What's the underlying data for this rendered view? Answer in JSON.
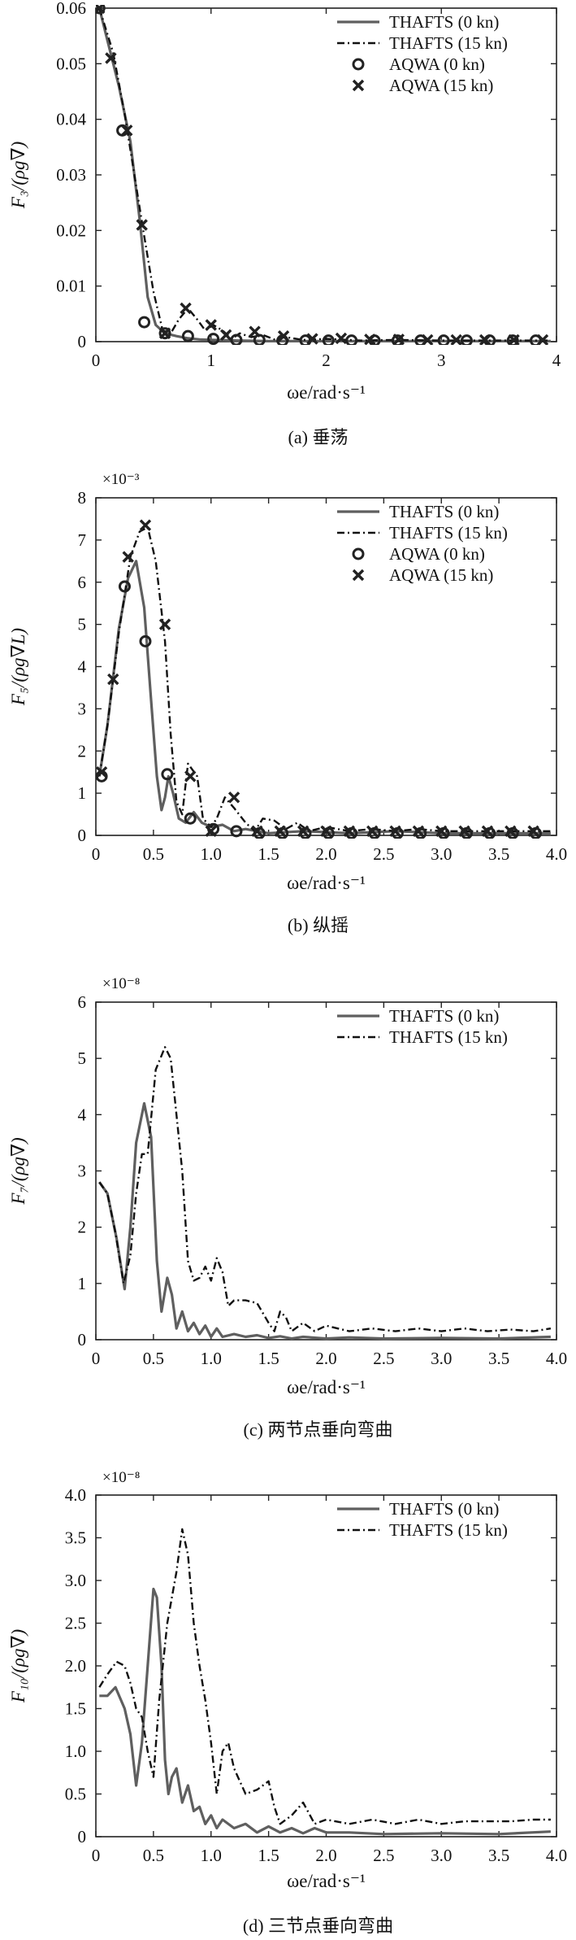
{
  "colors": {
    "thafts_0": "#5f5f5f",
    "thafts_15": "#111111",
    "marker": "#222222",
    "axis": "#222222"
  },
  "chart_data": [
    {
      "id": "a",
      "type": "line",
      "caption": "(a) 垂荡",
      "ylabel": "F₃/(ρg∇)",
      "xlabel": "ωe/rad·s⁻¹",
      "multiplier": "",
      "xlim": [
        0,
        4
      ],
      "ylim": [
        0,
        0.06
      ],
      "xticks": [
        0,
        1,
        2,
        3,
        4
      ],
      "xtick_labels": [
        "0",
        "1",
        "2",
        "3",
        "4"
      ],
      "yticks": [
        0,
        0.01,
        0.02,
        0.03,
        0.04,
        0.05,
        0.06
      ],
      "ytick_labels": [
        "0",
        "0.01",
        "0.02",
        "0.03",
        "0.04",
        "0.05",
        "0.06"
      ],
      "legend_position": "top-right",
      "series": [
        {
          "name": "THAFTS (0 kn)",
          "style": "solid",
          "x": [
            0.03,
            0.2,
            0.3,
            0.38,
            0.45,
            0.52,
            0.6,
            0.7,
            0.8,
            0.9,
            1.0,
            1.2,
            1.5,
            2.0,
            3.0,
            3.95
          ],
          "y": [
            0.06,
            0.046,
            0.036,
            0.022,
            0.008,
            0.003,
            0.0015,
            0.001,
            0.0006,
            0.0004,
            0.0003,
            0.0002,
            0.0001,
            0.0001,
            0.0001,
            0.0001
          ]
        },
        {
          "name": "THAFTS (15 kn)",
          "style": "dashdot",
          "x": [
            0.03,
            0.15,
            0.25,
            0.35,
            0.42,
            0.5,
            0.58,
            0.65,
            0.72,
            0.8,
            0.88,
            0.95,
            1.02,
            1.1,
            1.18,
            1.25,
            1.35,
            1.45,
            1.55,
            1.65,
            1.8,
            2.0,
            2.3,
            2.6,
            3.0,
            3.5,
            3.95
          ],
          "y": [
            0.06,
            0.052,
            0.041,
            0.028,
            0.019,
            0.009,
            0.002,
            0.0015,
            0.004,
            0.006,
            0.004,
            0.002,
            0.003,
            0.002,
            0.0005,
            0.0015,
            0.0008,
            0.0012,
            0.0004,
            0.0008,
            0.0003,
            0.0005,
            0.0002,
            0.0003,
            0.0002,
            0.0002,
            0.0002
          ]
        },
        {
          "name": "AQWA (0 kn)",
          "style": "circle",
          "x": [
            0.03,
            0.23,
            0.42,
            0.6,
            0.8,
            1.02,
            1.22,
            1.42,
            1.62,
            1.82,
            2.02,
            2.22,
            2.42,
            2.62,
            2.82,
            3.02,
            3.22,
            3.42,
            3.62,
            3.82
          ],
          "y": [
            0.06,
            0.038,
            0.0035,
            0.0015,
            0.001,
            0.0005,
            0.0003,
            0.0003,
            0.0002,
            0.0002,
            0.0002,
            0.0002,
            0.0002,
            0.0002,
            0.0002,
            0.0002,
            0.0002,
            0.0002,
            0.0002,
            0.0002
          ]
        },
        {
          "name": "AQWA (15 kn)",
          "style": "cross",
          "x": [
            0.03,
            0.13,
            0.27,
            0.4,
            0.6,
            0.78,
            1.0,
            1.13,
            1.38,
            1.63,
            1.88,
            2.13,
            2.38,
            2.63,
            2.88,
            3.13,
            3.38,
            3.63,
            3.88
          ],
          "y": [
            0.06,
            0.051,
            0.038,
            0.021,
            0.0015,
            0.006,
            0.003,
            0.0012,
            0.0018,
            0.001,
            0.0005,
            0.0006,
            0.0004,
            0.0004,
            0.0003,
            0.0003,
            0.0003,
            0.0003,
            0.0003
          ]
        }
      ]
    },
    {
      "id": "b",
      "type": "line",
      "caption": "(b) 纵摇",
      "ylabel": "F₅/(ρg∇L)",
      "xlabel": "ωe/rad·s⁻¹",
      "multiplier": "×10⁻³",
      "xlim": [
        0,
        4
      ],
      "ylim": [
        0,
        8
      ],
      "xticks": [
        0,
        0.5,
        1,
        1.5,
        2,
        2.5,
        3,
        3.5,
        4
      ],
      "xtick_labels": [
        "0",
        "0.5",
        "1.0",
        "1.5",
        "2.0",
        "2.5",
        "3.0",
        "3.5",
        "4.0"
      ],
      "yticks": [
        0,
        1,
        2,
        3,
        4,
        5,
        6,
        7,
        8
      ],
      "ytick_labels": [
        "0",
        "1",
        "2",
        "3",
        "4",
        "5",
        "6",
        "7",
        "8"
      ],
      "legend_position": "top-right",
      "series": [
        {
          "name": "THAFTS  (0 kn)",
          "style": "solid",
          "x": [
            0.03,
            0.1,
            0.2,
            0.28,
            0.35,
            0.42,
            0.48,
            0.53,
            0.57,
            0.6,
            0.63,
            0.67,
            0.72,
            0.78,
            0.85,
            0.92,
            1.0,
            1.1,
            1.2,
            1.3,
            1.5,
            1.8,
            2.2,
            2.6,
            3.0,
            3.5,
            3.95
          ],
          "y": [
            1.4,
            2.6,
            4.9,
            6.1,
            6.5,
            5.4,
            3.2,
            1.4,
            0.6,
            0.9,
            1.4,
            1.0,
            0.4,
            0.3,
            0.55,
            0.3,
            0.2,
            0.25,
            0.1,
            0.15,
            0.05,
            0.1,
            0.05,
            0.1,
            0.05,
            0.05,
            0.05
          ]
        },
        {
          "name": "THAFTS (15 kn)",
          "style": "dashdot",
          "x": [
            0.03,
            0.1,
            0.2,
            0.3,
            0.38,
            0.45,
            0.52,
            0.6,
            0.65,
            0.7,
            0.75,
            0.8,
            0.88,
            0.93,
            1.0,
            1.05,
            1.12,
            1.2,
            1.3,
            1.38,
            1.45,
            1.55,
            1.65,
            1.75,
            1.85,
            2.0,
            2.2,
            2.4,
            2.6,
            2.8,
            3.0,
            3.3,
            3.6,
            3.95
          ],
          "y": [
            1.4,
            2.6,
            4.8,
            6.6,
            7.2,
            7.3,
            6.5,
            4.6,
            2.4,
            0.8,
            0.5,
            1.7,
            1.4,
            0.4,
            0.2,
            0.4,
            0.9,
            0.65,
            0.3,
            0.1,
            0.4,
            0.35,
            0.15,
            0.3,
            0.1,
            0.2,
            0.1,
            0.15,
            0.1,
            0.15,
            0.1,
            0.1,
            0.1,
            0.1
          ]
        },
        {
          "name": "AQWA (0 kn)",
          "style": "circle",
          "x": [
            0.05,
            0.25,
            0.43,
            0.62,
            0.82,
            1.02,
            1.22,
            1.42,
            1.62,
            1.82,
            2.02,
            2.22,
            2.42,
            2.62,
            2.82,
            3.02,
            3.22,
            3.42,
            3.62,
            3.82
          ],
          "y": [
            1.4,
            5.9,
            4.6,
            1.45,
            0.4,
            0.15,
            0.1,
            0.05,
            0.05,
            0.05,
            0.05,
            0.05,
            0.05,
            0.05,
            0.05,
            0.05,
            0.05,
            0.05,
            0.05,
            0.05
          ]
        },
        {
          "name": "AQWA (15 kn)",
          "style": "cross",
          "x": [
            0.05,
            0.15,
            0.28,
            0.43,
            0.6,
            0.82,
            1.0,
            1.2,
            1.4,
            1.6,
            1.8,
            2.0,
            2.2,
            2.4,
            2.6,
            2.8,
            3.0,
            3.2,
            3.4,
            3.6,
            3.8
          ],
          "y": [
            1.5,
            3.7,
            6.6,
            7.35,
            5.0,
            1.4,
            0.1,
            0.9,
            0.1,
            0.1,
            0.1,
            0.1,
            0.1,
            0.1,
            0.1,
            0.1,
            0.1,
            0.1,
            0.1,
            0.1,
            0.1
          ]
        }
      ]
    },
    {
      "id": "c",
      "type": "line",
      "caption": "(c) 两节点垂向弯曲",
      "ylabel": "F₇/(ρg∇)",
      "xlabel": "ωe/rad·s⁻¹",
      "multiplier": "×10⁻⁸",
      "xlim": [
        0,
        4
      ],
      "ylim": [
        0,
        6
      ],
      "xticks": [
        0,
        0.5,
        1,
        1.5,
        2,
        2.5,
        3,
        3.5,
        4
      ],
      "xtick_labels": [
        "0",
        "0.5",
        "1.0",
        "1.5",
        "2.0",
        "2.5",
        "3.0",
        "3.5",
        "4.0"
      ],
      "yticks": [
        0,
        1,
        2,
        3,
        4,
        5,
        6
      ],
      "ytick_labels": [
        "0",
        "1",
        "2",
        "3",
        "4",
        "5",
        "6"
      ],
      "legend_position": "top-right",
      "series": [
        {
          "name": "THAFTS (0 kn)",
          "style": "solid",
          "x": [
            0.03,
            0.1,
            0.18,
            0.25,
            0.3,
            0.35,
            0.42,
            0.48,
            0.53,
            0.57,
            0.62,
            0.66,
            0.7,
            0.75,
            0.8,
            0.85,
            0.9,
            0.95,
            1.0,
            1.05,
            1.1,
            1.2,
            1.3,
            1.4,
            1.5,
            1.6,
            1.7,
            1.8,
            2.0,
            2.2,
            2.5,
            3.0,
            3.5,
            3.95
          ],
          "y": [
            2.8,
            2.6,
            1.8,
            0.9,
            2.0,
            3.5,
            4.2,
            3.6,
            1.4,
            0.5,
            1.1,
            0.8,
            0.2,
            0.5,
            0.15,
            0.3,
            0.1,
            0.25,
            0.05,
            0.2,
            0.05,
            0.1,
            0.05,
            0.08,
            0.03,
            0.06,
            0.02,
            0.05,
            0.02,
            0.04,
            0.02,
            0.03,
            0.02,
            0.05
          ]
        },
        {
          "name": "THAFTS (15 kn)",
          "style": "dashdot",
          "x": [
            0.03,
            0.1,
            0.17,
            0.24,
            0.3,
            0.35,
            0.4,
            0.45,
            0.52,
            0.6,
            0.65,
            0.7,
            0.75,
            0.8,
            0.85,
            0.9,
            0.95,
            1.0,
            1.05,
            1.1,
            1.15,
            1.2,
            1.3,
            1.4,
            1.5,
            1.55,
            1.6,
            1.65,
            1.7,
            1.8,
            1.9,
            2.0,
            2.2,
            2.4,
            2.6,
            2.8,
            3.0,
            3.2,
            3.4,
            3.6,
            3.8,
            3.95
          ],
          "y": [
            2.8,
            2.6,
            1.9,
            1.0,
            1.5,
            2.6,
            3.3,
            3.3,
            4.8,
            5.2,
            5.0,
            4.0,
            3.0,
            1.4,
            1.05,
            1.1,
            1.3,
            1.05,
            1.45,
            1.2,
            0.6,
            0.7,
            0.7,
            0.65,
            0.3,
            0.15,
            0.5,
            0.4,
            0.15,
            0.3,
            0.15,
            0.25,
            0.15,
            0.2,
            0.15,
            0.2,
            0.15,
            0.2,
            0.15,
            0.18,
            0.15,
            0.2
          ]
        }
      ]
    },
    {
      "id": "d",
      "type": "line",
      "caption": "(d) 三节点垂向弯曲",
      "ylabel": "F₁₀/(ρg∇)",
      "xlabel": "ωe/rad·s⁻¹",
      "multiplier": "×10⁻⁸",
      "xlim": [
        0,
        4
      ],
      "ylim": [
        0,
        4
      ],
      "xticks": [
        0,
        0.5,
        1,
        1.5,
        2,
        2.5,
        3,
        3.5,
        4
      ],
      "xtick_labels": [
        "0",
        "0.5",
        "1.0",
        "1.5",
        "2.0",
        "2.5",
        "3.0",
        "3.5",
        "4.0"
      ],
      "yticks": [
        0,
        0.5,
        1,
        1.5,
        2,
        2.5,
        3,
        3.5,
        4
      ],
      "ytick_labels": [
        "0",
        "0.5",
        "1.0",
        "1.5",
        "2.0",
        "2.5",
        "3.0",
        "3.5",
        "4.0"
      ],
      "legend_position": "top-right",
      "series": [
        {
          "name": "THAFTS (0 kn)",
          "style": "solid",
          "x": [
            0.03,
            0.1,
            0.17,
            0.25,
            0.3,
            0.35,
            0.4,
            0.45,
            0.5,
            0.53,
            0.57,
            0.6,
            0.63,
            0.66,
            0.7,
            0.75,
            0.8,
            0.85,
            0.9,
            0.95,
            1.0,
            1.05,
            1.1,
            1.2,
            1.3,
            1.4,
            1.5,
            1.6,
            1.7,
            1.8,
            1.9,
            2.0,
            2.2,
            2.5,
            3.0,
            3.5,
            3.95
          ],
          "y": [
            1.65,
            1.65,
            1.75,
            1.5,
            1.2,
            0.6,
            1.1,
            2.0,
            2.9,
            2.8,
            2.0,
            0.9,
            0.5,
            0.7,
            0.8,
            0.4,
            0.6,
            0.3,
            0.35,
            0.15,
            0.25,
            0.1,
            0.2,
            0.1,
            0.15,
            0.05,
            0.12,
            0.05,
            0.1,
            0.04,
            0.1,
            0.05,
            0.05,
            0.03,
            0.04,
            0.03,
            0.06
          ]
        },
        {
          "name": "THAFTS (15 kn)",
          "style": "dashdot",
          "x": [
            0.03,
            0.1,
            0.18,
            0.25,
            0.3,
            0.35,
            0.4,
            0.45,
            0.5,
            0.55,
            0.62,
            0.7,
            0.75,
            0.8,
            0.85,
            0.9,
            0.95,
            1.0,
            1.05,
            1.1,
            1.15,
            1.2,
            1.3,
            1.4,
            1.5,
            1.55,
            1.6,
            1.7,
            1.8,
            1.9,
            2.0,
            2.2,
            2.4,
            2.6,
            2.8,
            3.0,
            3.2,
            3.4,
            3.6,
            3.8,
            3.95
          ],
          "y": [
            1.75,
            1.9,
            2.05,
            2.0,
            1.8,
            1.5,
            1.4,
            1.0,
            0.7,
            1.6,
            2.5,
            3.1,
            3.6,
            3.3,
            2.5,
            2.0,
            1.6,
            1.1,
            0.5,
            1.0,
            1.1,
            0.8,
            0.5,
            0.55,
            0.65,
            0.35,
            0.15,
            0.25,
            0.4,
            0.15,
            0.2,
            0.15,
            0.2,
            0.15,
            0.2,
            0.15,
            0.18,
            0.18,
            0.18,
            0.2,
            0.2
          ]
        }
      ]
    }
  ]
}
